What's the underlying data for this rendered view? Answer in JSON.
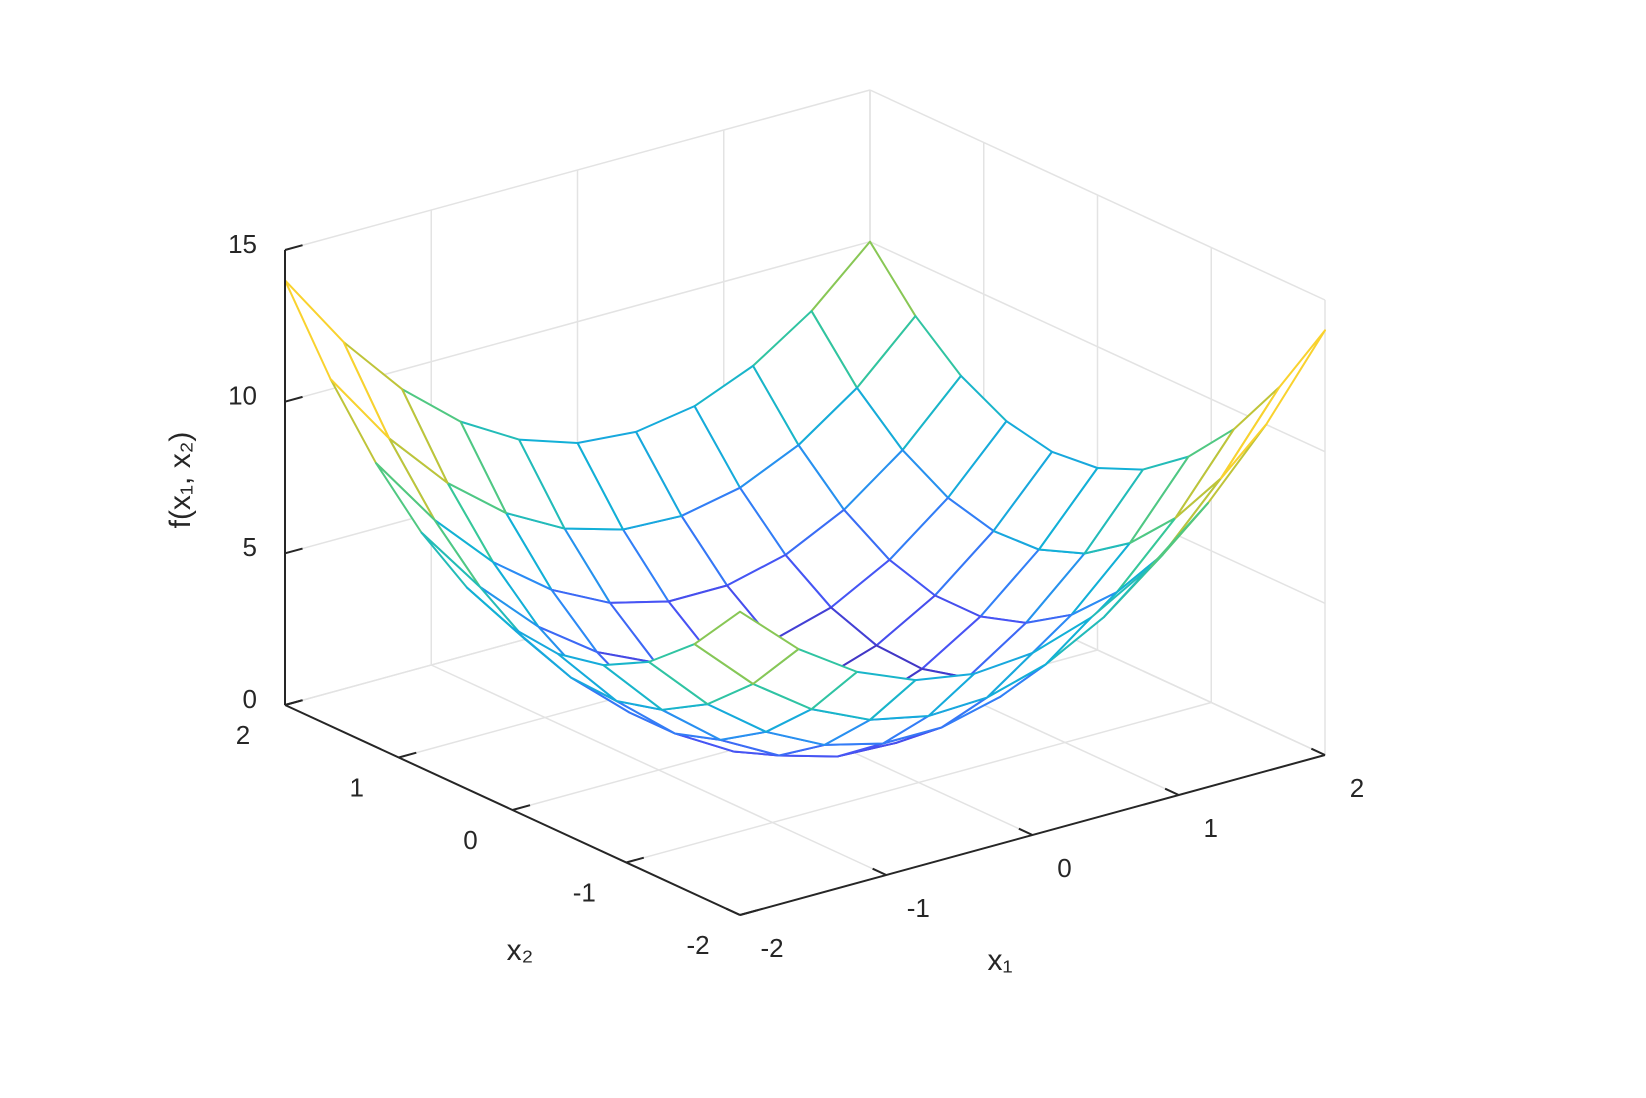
{
  "chart_data": {
    "type": "mesh",
    "xlabel": "x₁",
    "ylabel": "x₂",
    "zlabel": "f(x₁, x₂)",
    "x": [
      -2,
      -1.6,
      -1.2,
      -0.8,
      -0.4,
      0,
      0.4,
      0.8,
      1.2,
      1.6,
      2
    ],
    "y": [
      -2,
      -1.6,
      -1.2,
      -0.8,
      -0.4,
      0,
      0.4,
      0.8,
      1.2,
      1.6,
      2
    ],
    "z": [
      [
        10,
        8.24,
        6.96,
        6.16,
        5.84,
        6,
        6.64,
        7.76,
        9.36,
        11.44,
        14
      ],
      [
        8.24,
        6.4,
        5.04,
        4.16,
        3.76,
        3.84,
        4.4,
        5.44,
        6.96,
        8.96,
        11.44
      ],
      [
        6.96,
        5.04,
        3.6,
        2.64,
        2.16,
        2.16,
        2.64,
        3.6,
        5.04,
        6.96,
        9.36
      ],
      [
        6.16,
        4.16,
        2.64,
        1.6,
        1.04,
        0.96,
        1.36,
        2.24,
        3.6,
        5.44,
        7.76
      ],
      [
        5.84,
        3.76,
        2.16,
        1.04,
        0.4,
        0.24,
        0.56,
        1.36,
        2.64,
        4.4,
        6.64
      ],
      [
        6,
        3.84,
        2.16,
        0.96,
        0.24,
        0,
        0.24,
        0.96,
        2.16,
        3.84,
        6
      ],
      [
        6.64,
        4.4,
        2.64,
        1.36,
        0.56,
        0.24,
        0.4,
        1.04,
        2.16,
        3.76,
        5.84
      ],
      [
        7.76,
        5.44,
        3.6,
        2.24,
        1.36,
        0.96,
        1.04,
        1.6,
        2.64,
        4.16,
        6.16
      ],
      [
        9.36,
        6.96,
        5.04,
        3.6,
        2.64,
        2.16,
        2.16,
        2.64,
        3.6,
        5.04,
        6.96
      ],
      [
        11.44,
        8.96,
        6.96,
        5.44,
        4.4,
        3.84,
        3.76,
        4.16,
        5.04,
        6.4,
        8.24
      ],
      [
        14,
        11.44,
        9.36,
        7.76,
        6.64,
        6,
        5.84,
        6.16,
        6.96,
        8.24,
        10
      ]
    ],
    "xlim": [
      -2,
      2
    ],
    "ylim": [
      -2,
      2
    ],
    "zlim": [
      0,
      15
    ],
    "xticks": [
      -2,
      -1,
      0,
      1,
      2
    ],
    "yticks": [
      -2,
      -1,
      0,
      1,
      2
    ],
    "zticks": [
      0,
      5,
      10,
      15
    ],
    "grid": true,
    "colormap": [
      "#3e26a8",
      "#4852f4",
      "#2e87f7",
      "#12b1d6",
      "#37c896",
      "#abc739",
      "#fdbc3a",
      "#f6e524",
      "#f9fb15"
    ]
  }
}
